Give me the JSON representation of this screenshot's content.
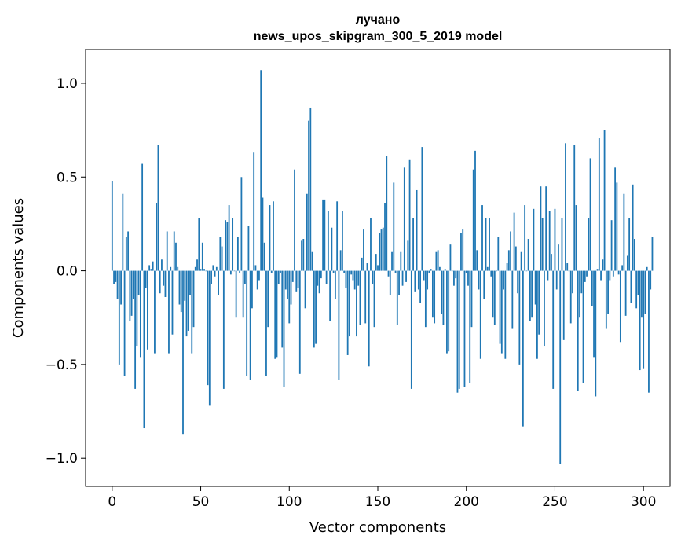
{
  "chart_data": {
    "type": "bar",
    "title_line1": "лучано",
    "title_line2": "news_upos_skipgram_300_5_2019 model",
    "xlabel": "Vector components",
    "ylabel": "Components values",
    "xlim": [
      -15,
      315
    ],
    "ylim": [
      -1.15,
      1.18
    ],
    "x_ticks": [
      0,
      50,
      100,
      150,
      200,
      250,
      300
    ],
    "x_tick_labels": [
      "0",
      "50",
      "100",
      "150",
      "200",
      "250",
      "300"
    ],
    "y_ticks": [
      -1.0,
      -0.5,
      0.0,
      0.5,
      1.0
    ],
    "y_tick_labels": [
      "−1.0",
      "−0.5",
      "0.0",
      "0.5",
      "1.0"
    ],
    "grid": false,
    "bar_color": "#1f77b4",
    "values": [
      0.48,
      -0.07,
      -0.06,
      -0.15,
      -0.5,
      -0.18,
      0.41,
      -0.56,
      0.18,
      0.21,
      -0.27,
      -0.24,
      -0.15,
      -0.63,
      -0.4,
      -0.13,
      -0.46,
      0.57,
      -0.84,
      -0.09,
      -0.42,
      0.03,
      0.01,
      0.05,
      -0.44,
      0.36,
      0.67,
      -0.12,
      0.06,
      -0.08,
      -0.14,
      0.21,
      -0.44,
      0.02,
      -0.34,
      0.21,
      0.15,
      0.02,
      -0.18,
      -0.22,
      -0.87,
      -0.16,
      -0.35,
      -0.32,
      -0.13,
      -0.44,
      -0.3,
      0.02,
      0.06,
      0.28,
      0.01,
      0.15,
      0.01,
      0.0,
      -0.61,
      -0.72,
      -0.07,
      0.03,
      -0.03,
      0.02,
      -0.13,
      0.18,
      0.13,
      -0.63,
      0.27,
      0.26,
      0.35,
      -0.02,
      0.28,
      0.0,
      -0.25,
      0.18,
      -0.01,
      0.5,
      -0.25,
      -0.07,
      -0.56,
      0.24,
      -0.58,
      -0.2,
      0.63,
      0.03,
      -0.1,
      -0.05,
      1.07,
      0.39,
      0.15,
      -0.56,
      -0.3,
      0.35,
      -0.01,
      0.37,
      -0.47,
      -0.46,
      -0.07,
      -0.01,
      -0.41,
      -0.62,
      -0.1,
      -0.15,
      -0.28,
      -0.18,
      -0.06,
      0.54,
      -0.11,
      -0.09,
      -0.55,
      0.16,
      0.17,
      -0.2,
      0.41,
      0.8,
      0.87,
      0.1,
      -0.41,
      -0.39,
      -0.08,
      -0.12,
      -0.04,
      0.38,
      0.38,
      -0.07,
      0.32,
      -0.27,
      0.23,
      -0.01,
      -0.15,
      0.37,
      -0.58,
      0.11,
      0.32,
      -0.01,
      -0.09,
      -0.45,
      -0.35,
      -0.02,
      -0.05,
      -0.1,
      -0.35,
      -0.08,
      -0.29,
      0.07,
      0.22,
      -0.28,
      0.04,
      -0.51,
      0.28,
      -0.07,
      -0.3,
      0.09,
      0.03,
      0.2,
      0.22,
      0.23,
      0.36,
      0.61,
      -0.03,
      -0.13,
      0.1,
      0.47,
      -0.01,
      -0.29,
      -0.13,
      0.1,
      -0.08,
      0.55,
      -0.06,
      0.16,
      0.59,
      -0.63,
      0.28,
      -0.11,
      0.43,
      -0.1,
      -0.17,
      0.66,
      -0.05,
      -0.3,
      -0.1,
      -0.01,
      0.01,
      -0.25,
      -0.28,
      0.1,
      0.11,
      0.02,
      -0.23,
      -0.29,
      0.01,
      -0.44,
      -0.43,
      0.14,
      0.0,
      -0.08,
      -0.04,
      -0.65,
      -0.63,
      0.2,
      0.22,
      -0.62,
      -0.01,
      -0.08,
      -0.6,
      -0.3,
      0.54,
      0.64,
      0.11,
      -0.1,
      -0.47,
      0.35,
      -0.15,
      0.28,
      0.02,
      0.28,
      -0.03,
      -0.25,
      -0.29,
      0.0,
      0.18,
      -0.39,
      -0.44,
      -0.1,
      -0.47,
      0.04,
      0.11,
      0.21,
      -0.31,
      0.31,
      0.13,
      -0.12,
      -0.5,
      0.1,
      -0.83,
      0.35,
      0.0,
      0.17,
      -0.27,
      -0.25,
      0.33,
      -0.18,
      -0.47,
      -0.34,
      0.45,
      0.28,
      -0.4,
      0.45,
      -0.05,
      0.32,
      0.09,
      -0.63,
      0.33,
      -0.1,
      0.14,
      -1.03,
      0.28,
      -0.37,
      0.68,
      0.04,
      0.0,
      -0.28,
      -0.12,
      0.67,
      0.35,
      -0.64,
      -0.25,
      -0.12,
      -0.6,
      -0.06,
      -0.03,
      0.28,
      0.6,
      -0.19,
      -0.46,
      -0.67,
      0.01,
      0.71,
      -0.05,
      0.06,
      0.75,
      -0.31,
      -0.23,
      -0.05,
      0.27,
      -0.03,
      0.55,
      0.47,
      -0.02,
      -0.38,
      0.03,
      0.41,
      -0.24,
      0.08,
      0.28,
      -0.17,
      0.46,
      0.17,
      -0.2,
      -0.13,
      -0.53,
      -0.25,
      -0.52,
      -0.23,
      0.02,
      -0.65,
      -0.1,
      0.18
    ]
  }
}
